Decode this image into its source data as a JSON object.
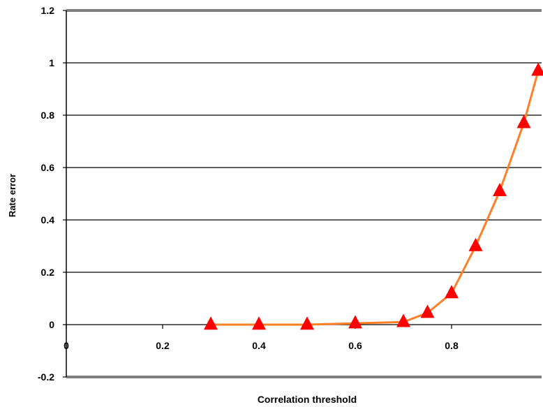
{
  "chart_data": {
    "type": "line",
    "xlabel": "Correlation threshold",
    "ylabel": "Rate error",
    "xlim": [
      0,
      1
    ],
    "ylim": [
      -0.2,
      1.2
    ],
    "x_ticks": [
      0,
      0.2,
      0.4,
      0.6,
      0.8
    ],
    "x_tick_labels": [
      "0",
      "0.2",
      "0.4",
      "0.6",
      "0.8"
    ],
    "y_ticks": [
      -0.2,
      0,
      0.2,
      0.4,
      0.6,
      0.8,
      1,
      1.2
    ],
    "y_tick_labels": [
      "-0.2",
      "0",
      "0.2",
      "0.4",
      "0.6",
      "0.8",
      "1",
      "1.2"
    ],
    "grid": "horizontal",
    "series": [
      {
        "x": [
          0.3,
          0.4,
          0.5,
          0.6,
          0.7,
          0.75,
          0.8,
          0.85,
          0.9,
          0.95,
          0.98
        ],
        "y": [
          0.0,
          0.0,
          0.0,
          0.005,
          0.01,
          0.045,
          0.12,
          0.3,
          0.51,
          0.77,
          0.97
        ],
        "line_color": "#ff7f27",
        "marker": "triangle",
        "marker_color": "#ff0000"
      }
    ]
  }
}
